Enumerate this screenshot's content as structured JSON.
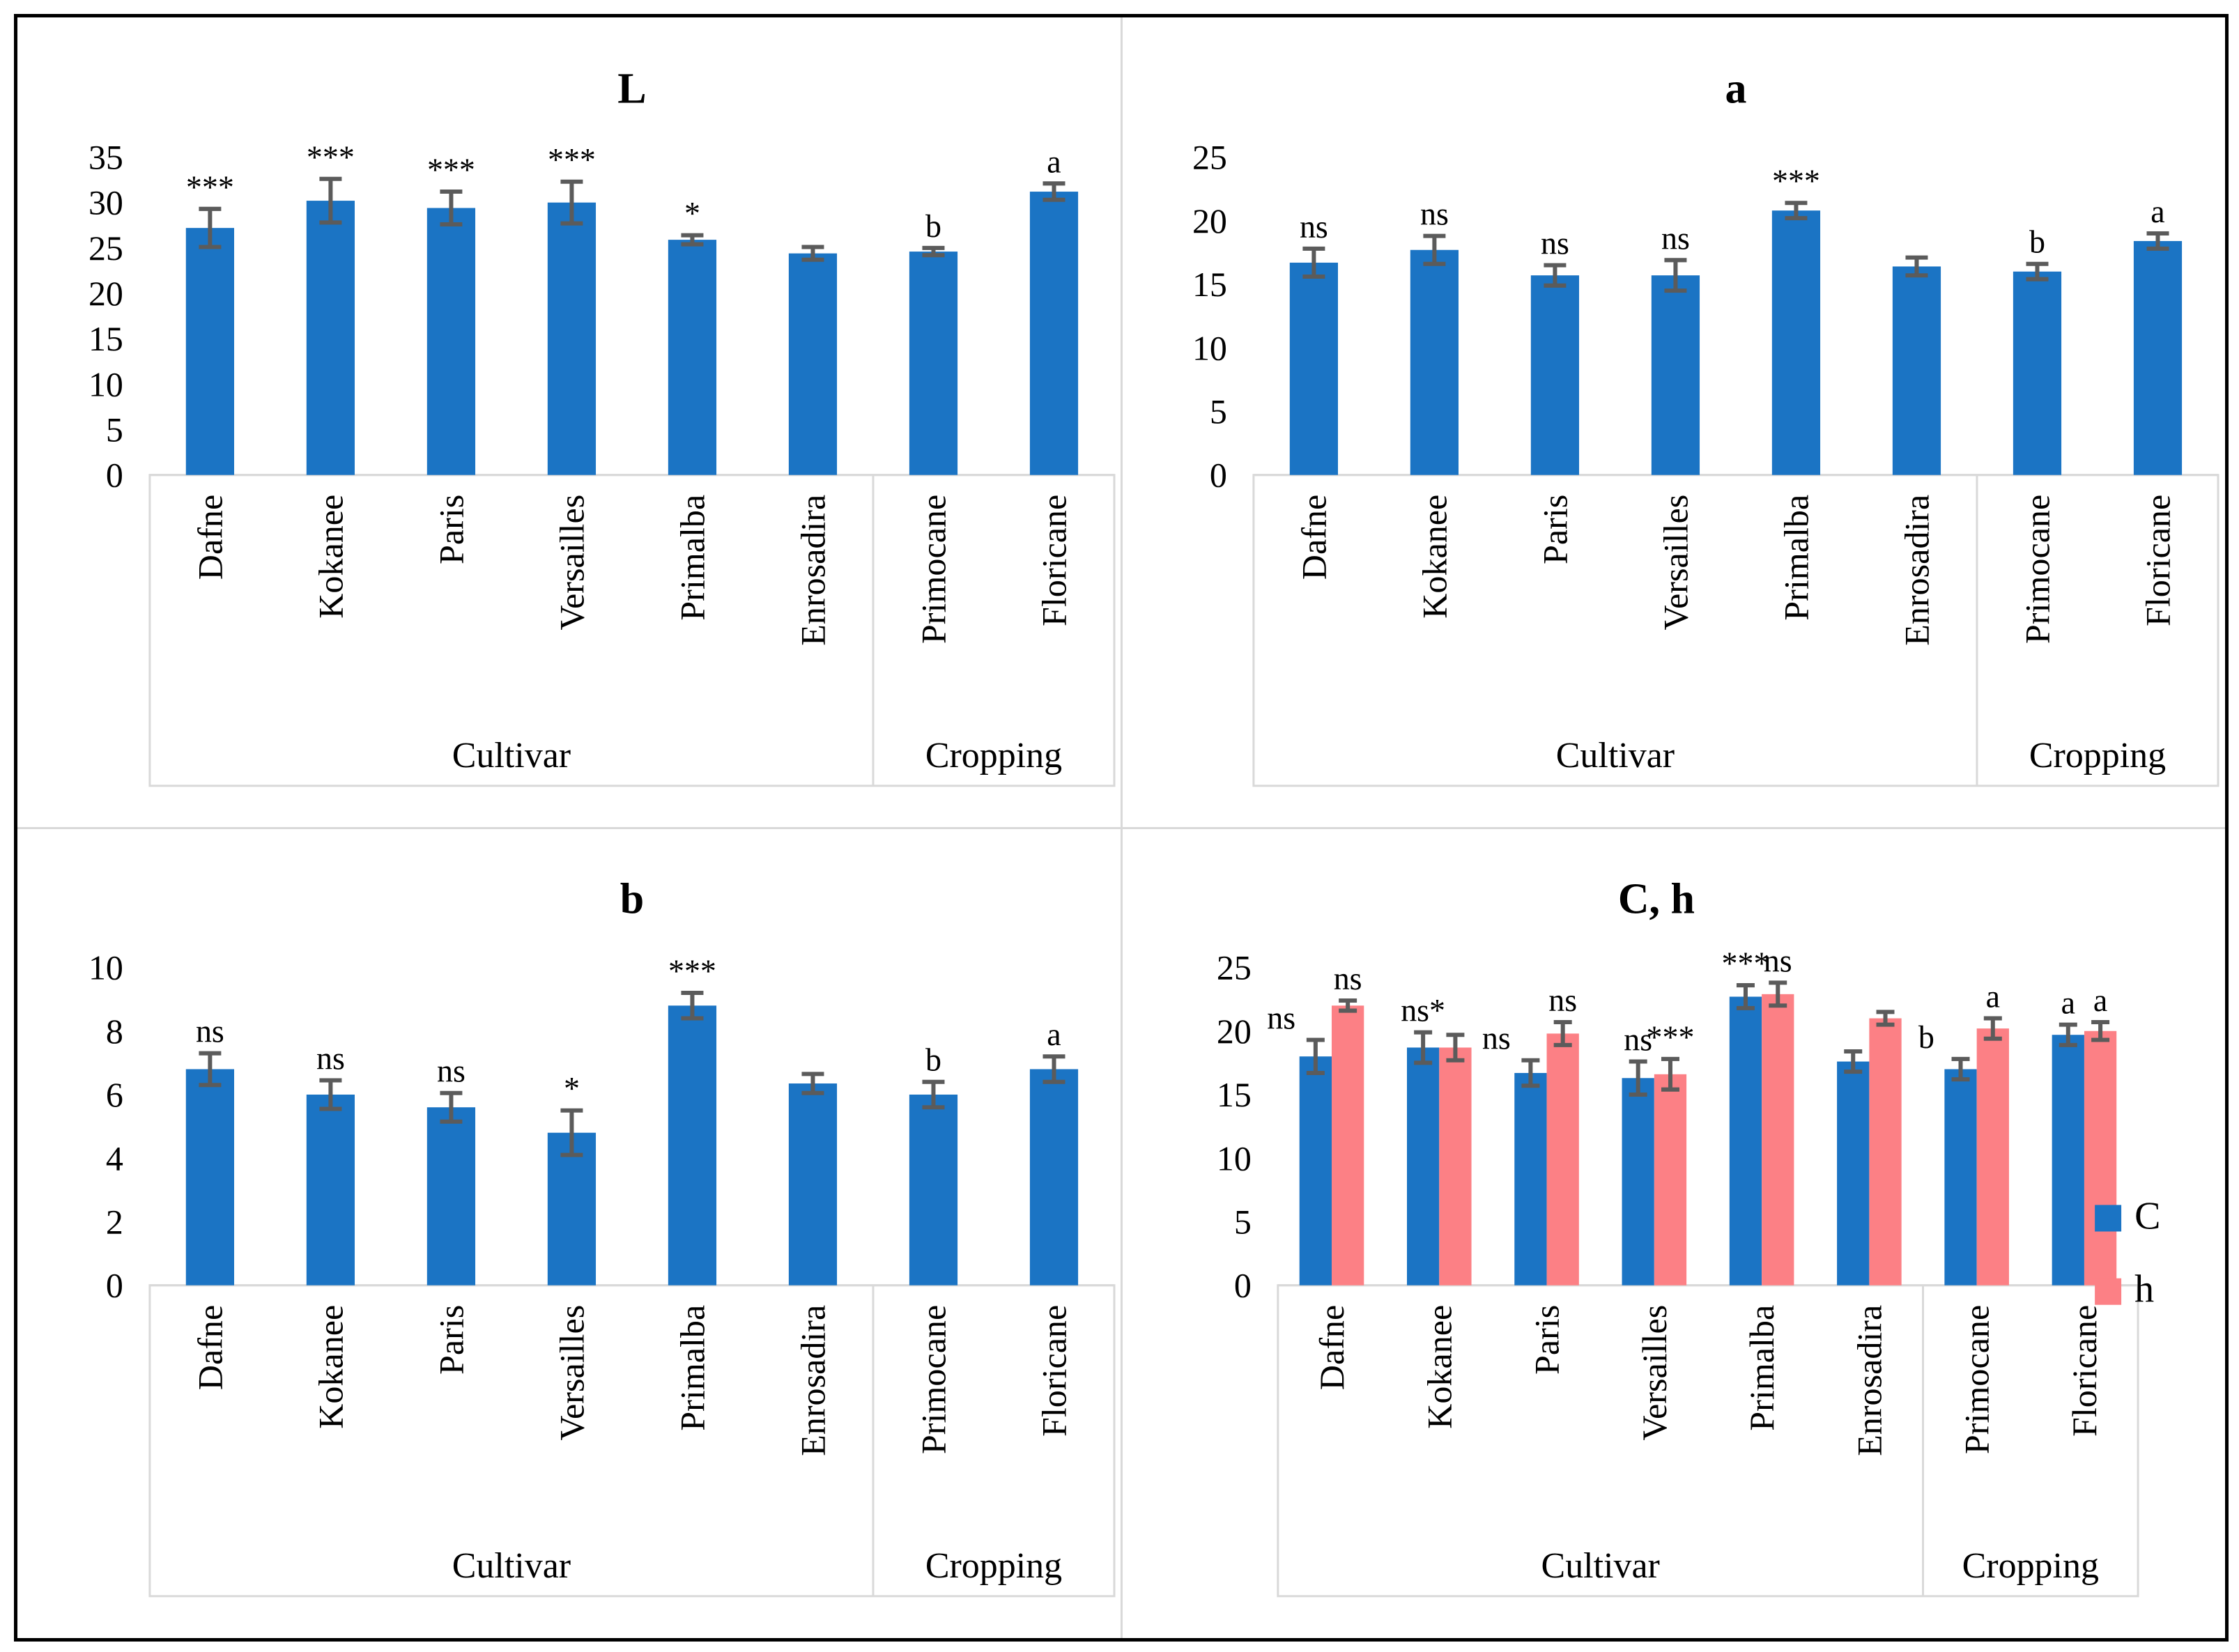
{
  "figure": {
    "background": "#ffffff",
    "border_color": "#000000",
    "panel_divider_color": "#d9d9d9",
    "axis_box_color": "#d9d9d9",
    "error_bar_color": "#5b5b5b",
    "bar_blue": "#1b74c4",
    "bar_pink": "#fc8085"
  },
  "chart_data": [
    {
      "type": "bar",
      "title": "L",
      "ylim": [
        0,
        35
      ],
      "yticks": [
        0,
        5,
        10,
        15,
        20,
        25,
        30,
        35
      ],
      "grid": "off",
      "categories": [
        "Dafne",
        "Kokanee",
        "Paris",
        "Versailles",
        "Primalba",
        "Enrosadira",
        "Primocane",
        "Floricane"
      ],
      "group_labels": [
        "Cultivar",
        "Cropping"
      ],
      "group_split": 6,
      "series": [
        {
          "name": "L",
          "color": "#1b74c4",
          "values": [
            27.2,
            30.2,
            29.4,
            30.0,
            25.9,
            24.4,
            24.6,
            31.2
          ],
          "errors": [
            2.1,
            2.4,
            1.8,
            2.3,
            0.5,
            0.7,
            0.4,
            0.9
          ],
          "sig_labels": [
            "***",
            "***",
            "***",
            "***",
            "*",
            "",
            "b",
            "a"
          ]
        }
      ]
    },
    {
      "type": "bar",
      "title": "a",
      "ylim": [
        0,
        25
      ],
      "yticks": [
        0,
        5,
        10,
        15,
        20,
        25
      ],
      "grid": "off",
      "categories": [
        "Dafne",
        "Kokanee",
        "Paris",
        "Versailles",
        "Primalba",
        "Enrosadira",
        "Primocane",
        "Floricane"
      ],
      "group_labels": [
        "Cultivar",
        "Cropping"
      ],
      "group_split": 6,
      "series": [
        {
          "name": "a",
          "color": "#1b74c4",
          "values": [
            16.7,
            17.7,
            15.7,
            15.7,
            20.8,
            16.4,
            16.0,
            18.4
          ],
          "errors": [
            1.1,
            1.1,
            0.8,
            1.2,
            0.6,
            0.7,
            0.6,
            0.6
          ],
          "sig_labels": [
            "ns",
            "ns",
            "ns",
            "ns",
            "***",
            "",
            "b",
            "a"
          ]
        }
      ]
    },
    {
      "type": "bar",
      "title": "b",
      "ylim": [
        0,
        10
      ],
      "yticks": [
        0,
        2,
        4,
        6,
        8,
        10
      ],
      "grid": "off",
      "categories": [
        "Dafne",
        "Kokanee",
        "Paris",
        "Versailles",
        "Primalba",
        "Enrosadira",
        "Primocane",
        "Floricane"
      ],
      "group_labels": [
        "Cultivar",
        "Cropping"
      ],
      "group_split": 6,
      "series": [
        {
          "name": "b",
          "color": "#1b74c4",
          "values": [
            6.8,
            6.0,
            5.6,
            4.8,
            8.8,
            6.35,
            6.0,
            6.8
          ],
          "errors": [
            0.5,
            0.45,
            0.45,
            0.7,
            0.4,
            0.3,
            0.4,
            0.4
          ],
          "sig_labels": [
            "ns",
            "ns",
            "ns",
            "*",
            "***",
            "",
            "b",
            "a"
          ]
        }
      ]
    },
    {
      "type": "bar",
      "title": "C, h",
      "ylim": [
        0,
        25
      ],
      "yticks": [
        0,
        5,
        10,
        15,
        20,
        25
      ],
      "grid": "off",
      "legend_position": "right",
      "categories": [
        "Dafne",
        "Kokanee",
        "Paris",
        "Versailles",
        "Primalba",
        "Enrosadira",
        "Primocane",
        "Floricane"
      ],
      "group_labels": [
        "Cultivar",
        "Cropping"
      ],
      "group_split": 6,
      "series": [
        {
          "name": "C",
          "color": "#1b74c4",
          "values": [
            18.0,
            18.7,
            16.7,
            16.3,
            22.7,
            17.6,
            17.0,
            19.7
          ],
          "errors": [
            1.3,
            1.2,
            1.0,
            1.3,
            0.9,
            0.8,
            0.8,
            0.8
          ],
          "sig_labels": [
            "ns",
            "ns*",
            "ns",
            "ns",
            "***",
            "",
            "b",
            "a"
          ]
        },
        {
          "name": "h",
          "color": "#fc8085",
          "values": [
            22.0,
            18.7,
            19.8,
            16.6,
            22.9,
            21.0,
            20.2,
            20.0
          ],
          "errors": [
            0.4,
            1.0,
            0.9,
            1.2,
            0.9,
            0.5,
            0.8,
            0.7
          ],
          "sig_labels": [
            "ns",
            "",
            "ns",
            "***",
            "ns",
            "",
            "a",
            "a"
          ]
        }
      ]
    }
  ]
}
